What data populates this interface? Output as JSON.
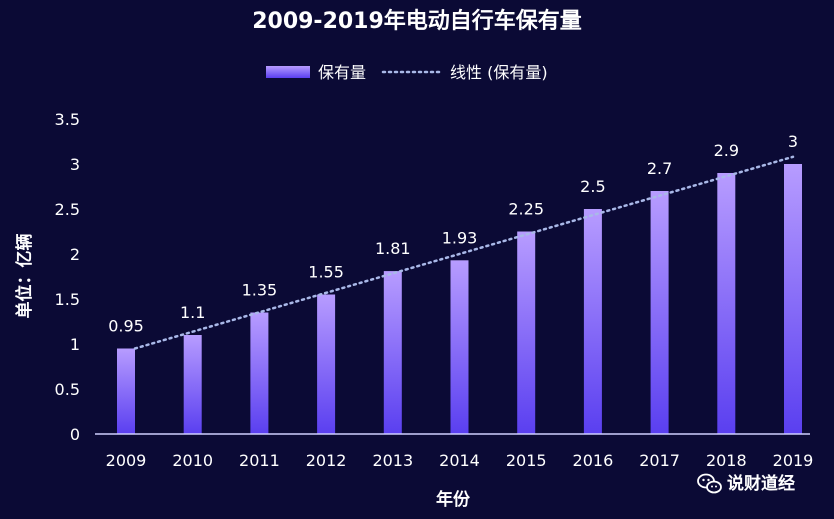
{
  "chart_data": {
    "type": "bar",
    "title": "2009-2019年电动自行车保有量",
    "categories": [
      "2009",
      "2010",
      "2011",
      "2012",
      "2013",
      "2014",
      "2015",
      "2016",
      "2017",
      "2018",
      "2019"
    ],
    "series": [
      {
        "name": "保有量",
        "type": "bar",
        "values": [
          0.95,
          1.1,
          1.35,
          1.55,
          1.81,
          1.93,
          2.25,
          2.5,
          2.7,
          2.9,
          3
        ],
        "labels": [
          "0.95",
          "1.1",
          "1.35",
          "1.55",
          "1.81",
          "1.93",
          "2.25",
          "2.5",
          "2.7",
          "2.9",
          "3"
        ]
      },
      {
        "name": "线性 (保有量)",
        "type": "trendline",
        "start": 0.95,
        "end": 3.08
      }
    ],
    "xlabel": "年份",
    "ylabel": "单位：亿辆",
    "ylim": [
      0,
      3.5
    ],
    "yticks": [
      0,
      0.5,
      1,
      1.5,
      2,
      2.5,
      3,
      3.5
    ],
    "ytick_labels": [
      "0",
      "0.5",
      "1",
      "1.5",
      "2",
      "2.5",
      "3",
      "3.5"
    ],
    "grid": false,
    "legend_position": "top-center"
  },
  "watermark": {
    "text": "说财道经",
    "icon": "wechat-icon"
  },
  "colors": {
    "background": "#0b0a35",
    "bar_top": "#b79cff",
    "bar_bottom": "#5a3ff0",
    "trend": "#a9b8e8",
    "axis": "#cfd0ff",
    "text": "#ffffff"
  }
}
